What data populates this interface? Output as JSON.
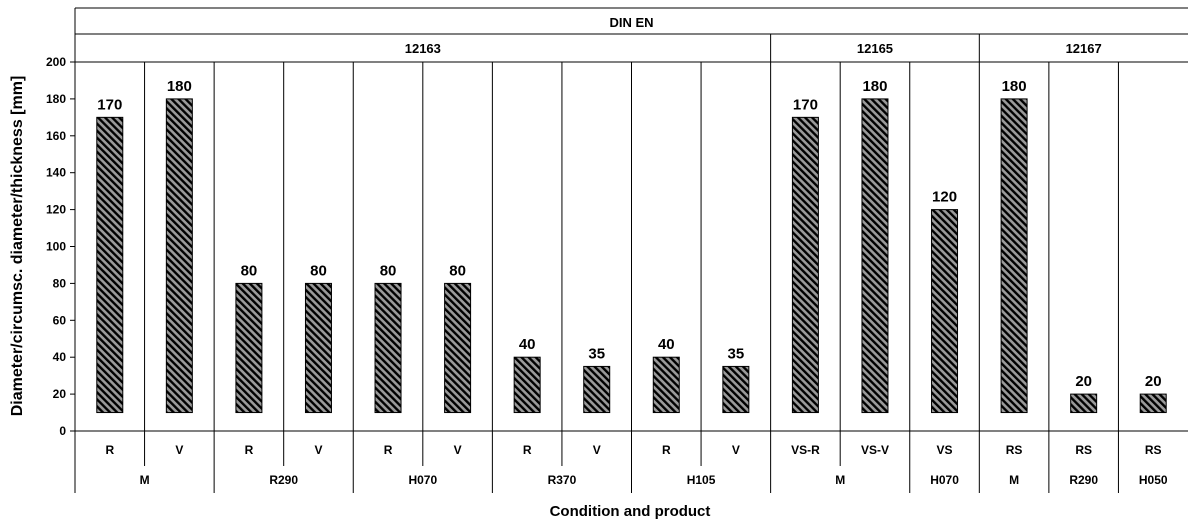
{
  "chart_data": {
    "type": "bar",
    "header": {
      "standard": "DIN EN",
      "groups": [
        {
          "label": "12163",
          "span": 10
        },
        {
          "label": "12165",
          "span": 3
        },
        {
          "label": "12167",
          "span": 3
        }
      ]
    },
    "categories": [
      "R",
      "V",
      "R",
      "V",
      "R",
      "V",
      "R",
      "V",
      "R",
      "V",
      "VS-R",
      "VS-V",
      "VS",
      "RS",
      "RS",
      "RS"
    ],
    "conditions": [
      {
        "label": "M",
        "span": 2
      },
      {
        "label": "R290",
        "span": 2
      },
      {
        "label": "H070",
        "span": 2
      },
      {
        "label": "R370",
        "span": 2
      },
      {
        "label": "H105",
        "span": 2
      },
      {
        "label": "M",
        "span": 2
      },
      {
        "label": "H070",
        "span": 1
      },
      {
        "label": "M",
        "span": 1
      },
      {
        "label": "R290",
        "span": 1
      },
      {
        "label": "H050",
        "span": 1
      }
    ],
    "values": [
      170,
      180,
      80,
      80,
      80,
      80,
      40,
      35,
      40,
      35,
      170,
      180,
      120,
      180,
      20,
      20
    ],
    "value_labels": [
      "170",
      "180",
      "80",
      "80",
      "80",
      "80",
      "40",
      "35",
      "40",
      "35",
      "170",
      "180",
      "120",
      "180",
      "20",
      "20"
    ],
    "ylabel": "Diameter/circumsc. diameter/thickness [mm]",
    "xlabel": "Condition and product",
    "ylim": [
      0,
      200
    ],
    "yticks": [
      "0",
      "20",
      "40",
      "60",
      "80",
      "100",
      "120",
      "140",
      "160",
      "180",
      "200"
    ],
    "bar_baseline": 10,
    "bar_pattern": "diagonal-hatch",
    "colors": {
      "bar_fill": "#9a9a9a",
      "hatch": "#000000",
      "background": "#ffffff"
    }
  }
}
